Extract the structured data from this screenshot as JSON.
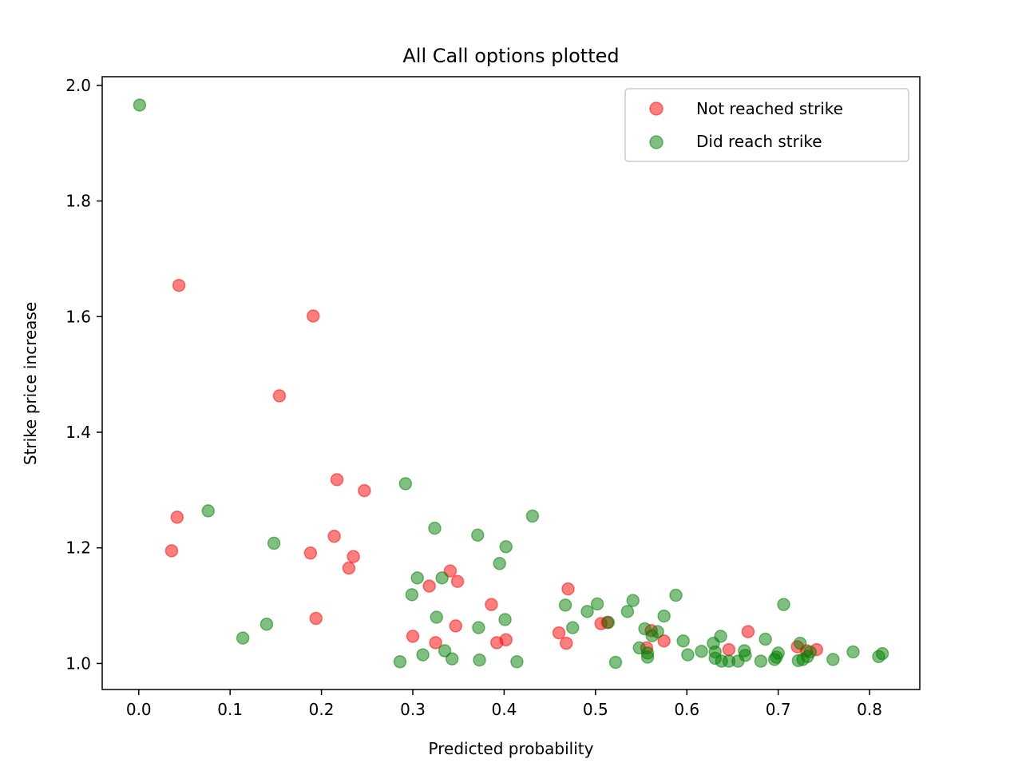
{
  "chart_data": {
    "type": "scatter",
    "title": "All Call options plotted",
    "xlabel": "Predicted probability",
    "ylabel": "Strike price increase",
    "xlim": [
      -0.04,
      0.855
    ],
    "ylim": [
      0.955,
      2.015
    ],
    "xticks": [
      0.0,
      0.1,
      0.2,
      0.3,
      0.4,
      0.5,
      0.6,
      0.7,
      0.8
    ],
    "xtick_labels": [
      "0.0",
      "0.1",
      "0.2",
      "0.3",
      "0.4",
      "0.5",
      "0.6",
      "0.7",
      "0.8"
    ],
    "yticks": [
      1.0,
      1.2,
      1.4,
      1.6,
      1.8,
      2.0
    ],
    "ytick_labels": [
      "1.0",
      "1.2",
      "1.4",
      "1.6",
      "1.8",
      "2.0"
    ],
    "grid": false,
    "legend_position": "top-right",
    "series": [
      {
        "name": "Not reached strike",
        "color": "#ff0000",
        "points": [
          [
            0.044,
            1.654
          ],
          [
            0.191,
            1.601
          ],
          [
            0.154,
            1.463
          ],
          [
            0.217,
            1.318
          ],
          [
            0.247,
            1.299
          ],
          [
            0.042,
            1.253
          ],
          [
            0.214,
            1.22
          ],
          [
            0.036,
            1.195
          ],
          [
            0.188,
            1.191
          ],
          [
            0.235,
            1.185
          ],
          [
            0.23,
            1.165
          ],
          [
            0.341,
            1.16
          ],
          [
            0.349,
            1.142
          ],
          [
            0.318,
            1.134
          ],
          [
            0.47,
            1.129
          ],
          [
            0.386,
            1.102
          ],
          [
            0.194,
            1.078
          ],
          [
            0.506,
            1.069
          ],
          [
            0.513,
            1.071
          ],
          [
            0.347,
            1.065
          ],
          [
            0.46,
            1.053
          ],
          [
            0.561,
            1.057
          ],
          [
            0.667,
            1.055
          ],
          [
            0.3,
            1.047
          ],
          [
            0.402,
            1.041
          ],
          [
            0.575,
            1.039
          ],
          [
            0.325,
            1.036
          ],
          [
            0.392,
            1.036
          ],
          [
            0.468,
            1.035
          ],
          [
            0.721,
            1.029
          ],
          [
            0.556,
            1.027
          ],
          [
            0.646,
            1.024
          ],
          [
            0.742,
            1.024
          ],
          [
            0.731,
            1.022
          ]
        ]
      },
      {
        "name": "Did reach strike",
        "color": "#008000",
        "points": [
          [
            0.001,
            1.966
          ],
          [
            0.292,
            1.311
          ],
          [
            0.076,
            1.264
          ],
          [
            0.431,
            1.255
          ],
          [
            0.324,
            1.234
          ],
          [
            0.371,
            1.222
          ],
          [
            0.148,
            1.208
          ],
          [
            0.402,
            1.202
          ],
          [
            0.395,
            1.173
          ],
          [
            0.305,
            1.148
          ],
          [
            0.332,
            1.148
          ],
          [
            0.299,
            1.119
          ],
          [
            0.588,
            1.118
          ],
          [
            0.541,
            1.109
          ],
          [
            0.502,
            1.103
          ],
          [
            0.706,
            1.102
          ],
          [
            0.467,
            1.101
          ],
          [
            0.491,
            1.09
          ],
          [
            0.535,
            1.09
          ],
          [
            0.575,
            1.082
          ],
          [
            0.326,
            1.08
          ],
          [
            0.401,
            1.076
          ],
          [
            0.514,
            1.071
          ],
          [
            0.14,
            1.068
          ],
          [
            0.475,
            1.062
          ],
          [
            0.372,
            1.062
          ],
          [
            0.554,
            1.06
          ],
          [
            0.568,
            1.055
          ],
          [
            0.562,
            1.048
          ],
          [
            0.637,
            1.047
          ],
          [
            0.114,
            1.044
          ],
          [
            0.686,
            1.042
          ],
          [
            0.596,
            1.039
          ],
          [
            0.629,
            1.035
          ],
          [
            0.724,
            1.035
          ],
          [
            0.548,
            1.027
          ],
          [
            0.335,
            1.022
          ],
          [
            0.663,
            1.022
          ],
          [
            0.616,
            1.021
          ],
          [
            0.631,
            1.02
          ],
          [
            0.735,
            1.02
          ],
          [
            0.782,
            1.02
          ],
          [
            0.557,
            1.018
          ],
          [
            0.7,
            1.018
          ],
          [
            0.814,
            1.017
          ],
          [
            0.311,
            1.015
          ],
          [
            0.601,
            1.015
          ],
          [
            0.664,
            1.014
          ],
          [
            0.81,
            1.012
          ],
          [
            0.732,
            1.012
          ],
          [
            0.557,
            1.011
          ],
          [
            0.698,
            1.011
          ],
          [
            0.631,
            1.009
          ],
          [
            0.343,
            1.008
          ],
          [
            0.373,
            1.006
          ],
          [
            0.696,
            1.007
          ],
          [
            0.727,
            1.007
          ],
          [
            0.76,
            1.007
          ],
          [
            0.638,
            1.004
          ],
          [
            0.646,
            1.004
          ],
          [
            0.656,
            1.004
          ],
          [
            0.681,
            1.004
          ],
          [
            0.722,
            1.005
          ],
          [
            0.286,
            1.003
          ],
          [
            0.414,
            1.003
          ],
          [
            0.522,
            1.002
          ]
        ]
      }
    ]
  }
}
